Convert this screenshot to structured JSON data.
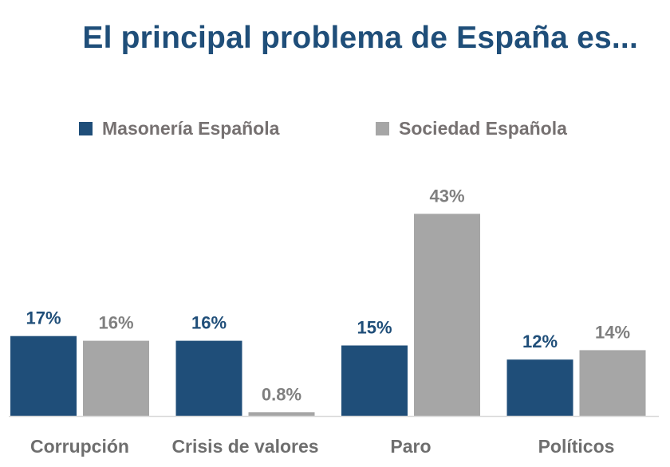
{
  "chart_data": {
    "type": "bar",
    "title": "El principal problema de España es...",
    "categories": [
      "Corrupción",
      "Crisis de valores",
      "Paro",
      "Políticos"
    ],
    "series": [
      {
        "name": "Masonería Española",
        "color": "#1f4e79",
        "values": [
          17,
          16,
          15,
          12
        ],
        "labels": [
          "17%",
          "16%",
          "15%",
          "12%"
        ]
      },
      {
        "name": "Sociedad Española",
        "color": "#a6a6a6",
        "values": [
          16,
          0.8,
          43,
          14
        ],
        "labels": [
          "16%",
          "0.8%",
          "43%",
          "14%"
        ]
      }
    ],
    "ylim": [
      0,
      50
    ],
    "legend_position": "top",
    "grid": false
  }
}
